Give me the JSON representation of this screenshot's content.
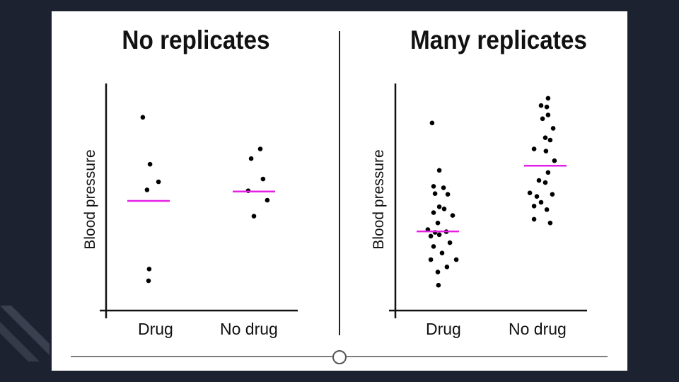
{
  "colors": {
    "background": "#1c2230",
    "slide": "#ffffff",
    "mean_line": "#e520e5",
    "points": "#000000"
  },
  "panels": [
    {
      "title": "No replicates",
      "ylabel": "Blood pressure",
      "categories": [
        "Drug",
        "No drug"
      ]
    },
    {
      "title": "Many replicates",
      "ylabel": "Blood pressure",
      "categories": [
        "Drug",
        "No drug"
      ]
    }
  ],
  "chart_data": [
    {
      "type": "scatter",
      "title": "No replicates",
      "ylabel": "Blood pressure",
      "categories": [
        "Drug",
        "No drug"
      ],
      "ylim": [
        0,
        100
      ],
      "grid": false,
      "y_ticks_shown": false,
      "series": [
        {
          "category": "Drug",
          "points": [
            {
              "j": -0.27,
              "y": 85.6
            },
            {
              "j": 0.07,
              "y": 65.6
            },
            {
              "j": 0.47,
              "y": 58.1
            },
            {
              "j": -0.07,
              "y": 54.7
            },
            {
              "j": 0.03,
              "y": 21.0
            },
            {
              "j": 0.0,
              "y": 16.0
            }
          ],
          "mean": 50.0
        },
        {
          "category": "No drug",
          "points": [
            {
              "j": 0.3,
              "y": 72.1
            },
            {
              "j": -0.13,
              "y": 68.0
            },
            {
              "j": 0.43,
              "y": 59.3
            },
            {
              "j": -0.27,
              "y": 54.3
            },
            {
              "j": 0.63,
              "y": 50.3
            },
            {
              "j": 0.0,
              "y": 43.5
            }
          ],
          "mean": 54.0
        }
      ]
    },
    {
      "type": "scatter",
      "title": "Many replicates",
      "ylabel": "Blood pressure",
      "categories": [
        "Drug",
        "No drug"
      ],
      "ylim": [
        0,
        100
      ],
      "grid": false,
      "y_ticks_shown": false,
      "series": [
        {
          "category": "Drug",
          "points": [
            {
              "j": -0.27,
              "y": 83.2
            },
            {
              "j": 0.07,
              "y": 63.0
            },
            {
              "j": -0.2,
              "y": 56.2
            },
            {
              "j": 0.27,
              "y": 55.6
            },
            {
              "j": -0.13,
              "y": 53.1
            },
            {
              "j": 0.47,
              "y": 52.8
            },
            {
              "j": 0.07,
              "y": 47.5
            },
            {
              "j": 0.3,
              "y": 46.6
            },
            {
              "j": -0.2,
              "y": 45.0
            },
            {
              "j": 0.7,
              "y": 43.8
            },
            {
              "j": 0.0,
              "y": 40.6
            },
            {
              "j": -0.47,
              "y": 37.8
            },
            {
              "j": 0.4,
              "y": 36.9
            },
            {
              "j": -0.13,
              "y": 36.6
            },
            {
              "j": 0.07,
              "y": 35.6
            },
            {
              "j": -0.33,
              "y": 35.0
            },
            {
              "j": 0.57,
              "y": 32.2
            },
            {
              "j": -0.2,
              "y": 30.6
            },
            {
              "j": 0.2,
              "y": 27.8
            },
            {
              "j": 0.87,
              "y": 25.0
            },
            {
              "j": -0.33,
              "y": 25.0
            },
            {
              "j": 0.43,
              "y": 21.9
            },
            {
              "j": 0.0,
              "y": 19.7
            },
            {
              "j": 0.03,
              "y": 14.1
            }
          ],
          "mean": 37.0
        },
        {
          "category": "No drug",
          "points": [
            {
              "j": 0.13,
              "y": 93.7
            },
            {
              "j": -0.2,
              "y": 90.6
            },
            {
              "j": 0.07,
              "y": 90.0
            },
            {
              "j": 0.13,
              "y": 86.6
            },
            {
              "j": -0.13,
              "y": 85.0
            },
            {
              "j": 0.37,
              "y": 80.9
            },
            {
              "j": 0.0,
              "y": 76.9
            },
            {
              "j": 0.23,
              "y": 75.9
            },
            {
              "j": -0.53,
              "y": 72.1
            },
            {
              "j": 0.03,
              "y": 71.2
            },
            {
              "j": 0.43,
              "y": 67.1
            },
            {
              "j": 0.13,
              "y": 62.1
            },
            {
              "j": -0.3,
              "y": 58.7
            },
            {
              "j": 0.0,
              "y": 57.8
            },
            {
              "j": -0.73,
              "y": 53.4
            },
            {
              "j": -0.4,
              "y": 51.9
            },
            {
              "j": 0.33,
              "y": 52.8
            },
            {
              "j": -0.2,
              "y": 49.4
            },
            {
              "j": -0.53,
              "y": 47.8
            },
            {
              "j": 0.07,
              "y": 46.3
            },
            {
              "j": -0.53,
              "y": 42.2
            },
            {
              "j": 0.23,
              "y": 40.6
            }
          ],
          "mean": 65.0
        }
      ]
    }
  ]
}
